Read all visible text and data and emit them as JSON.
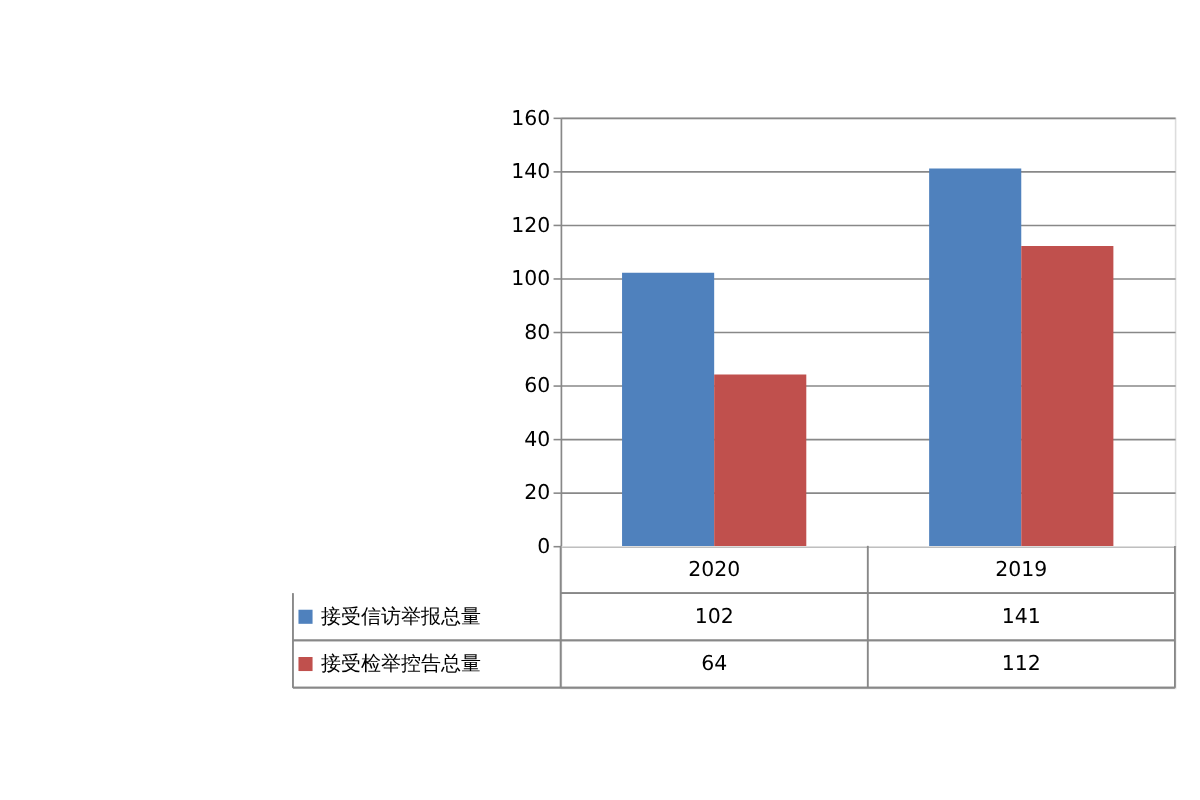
{
  "chart_data": {
    "type": "bar",
    "categories": [
      "2020",
      "2019"
    ],
    "series": [
      {
        "name": "接受信访举报总量",
        "color": "#4f81bd",
        "values": [
          102,
          141
        ]
      },
      {
        "name": "接受检举控告总量",
        "color": "#c0504d",
        "values": [
          64,
          112
        ]
      }
    ],
    "ylim": [
      0,
      160
    ],
    "yticks": [
      0,
      20,
      40,
      60,
      80,
      100,
      120,
      140,
      160
    ],
    "grid": "y",
    "legend": "bottom",
    "data_labels": true
  }
}
